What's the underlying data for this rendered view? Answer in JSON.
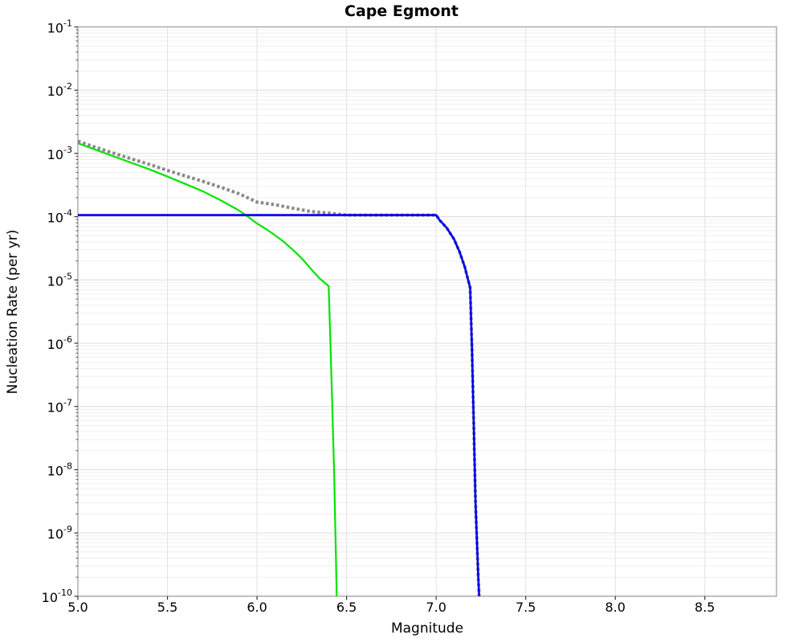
{
  "title": "Cape Egmont",
  "chart_data": {
    "type": "line",
    "title": "Cape Egmont",
    "xlabel": "Magnitude",
    "ylabel": "Nucleation Rate (per yr)",
    "xlim": [
      5.0,
      8.9
    ],
    "ylim": [
      1e-10,
      0.1
    ],
    "x_axis_scale": "linear",
    "y_axis_scale": "log",
    "x_ticks": [
      5.0,
      5.5,
      6.0,
      6.5,
      7.0,
      7.5,
      8.0,
      8.5
    ],
    "x_tick_labels": [
      "5.0",
      "5.5",
      "6.0",
      "6.5",
      "7.0",
      "7.5",
      "8.0",
      "8.5"
    ],
    "y_tick_exponents": [
      -1,
      -2,
      -3,
      -4,
      -5,
      -6,
      -7,
      -8,
      -9,
      -10
    ],
    "grid": "major and log-minor gridlines on",
    "legend": "none",
    "series": [
      {
        "name": "green-curve",
        "description": "tapered Gutenberg-Richter branch, max magnitude ~6.45",
        "color": "#00e400",
        "style": "solid",
        "width": 2.2,
        "points": [
          [
            5.0,
            0.00145
          ],
          [
            5.1,
            0.00114
          ],
          [
            5.2,
            0.0009
          ],
          [
            5.3,
            0.00071
          ],
          [
            5.4,
            0.00056
          ],
          [
            5.5,
            0.00043
          ],
          [
            5.6,
            0.00033
          ],
          [
            5.7,
            0.00025
          ],
          [
            5.8,
            0.00018
          ],
          [
            5.9,
            0.000125
          ],
          [
            5.95,
            0.0001
          ],
          [
            6.0,
            7.8e-05
          ],
          [
            6.05,
            6.4e-05
          ],
          [
            6.1,
            5.1e-05
          ],
          [
            6.15,
            4e-05
          ],
          [
            6.2,
            3e-05
          ],
          [
            6.25,
            2.2e-05
          ],
          [
            6.3,
            1.5e-05
          ],
          [
            6.35,
            1.05e-05
          ],
          [
            6.4,
            8e-06
          ],
          [
            6.41,
            1e-06
          ],
          [
            6.42,
            1e-07
          ],
          [
            6.43,
            1e-08
          ],
          [
            6.44,
            5e-10
          ],
          [
            6.445,
            1e-10
          ]
        ]
      },
      {
        "name": "gray-dotted-curve",
        "description": "total rate (sum of green and blue branches)",
        "color": "#8a8a8a",
        "style": "dotted",
        "width": 4,
        "points": [
          [
            5.0,
            0.00156
          ],
          [
            5.1,
            0.00125
          ],
          [
            5.2,
            0.00101
          ],
          [
            5.3,
            0.00082
          ],
          [
            5.4,
            0.00067
          ],
          [
            5.5,
            0.00054
          ],
          [
            5.6,
            0.00044
          ],
          [
            5.7,
            0.00036
          ],
          [
            5.8,
            0.00029
          ],
          [
            5.9,
            0.00023
          ],
          [
            6.0,
            0.00017
          ],
          [
            6.1,
            0.000155
          ],
          [
            6.2,
            0.000136
          ],
          [
            6.3,
            0.000121
          ],
          [
            6.4,
            0.000114
          ],
          [
            6.5,
            0.000106
          ],
          [
            6.75,
            0.000106
          ],
          [
            7.0,
            0.000106
          ],
          [
            7.02,
            8.8e-05
          ],
          [
            7.06,
            6.6e-05
          ],
          [
            7.1,
            4.4e-05
          ],
          [
            7.13,
            2.8e-05
          ],
          [
            7.16,
            1.6e-05
          ],
          [
            7.19,
            7.5e-06
          ],
          [
            7.2,
            8e-07
          ],
          [
            7.21,
            5e-08
          ],
          [
            7.22,
            3e-09
          ],
          [
            7.235,
            2e-10
          ],
          [
            7.24,
            1e-10
          ]
        ]
      },
      {
        "name": "blue-curve",
        "description": "characteristic branch, flat rate with max magnitude ~7.24",
        "color": "#0000ee",
        "style": "solid",
        "width": 2.6,
        "points": [
          [
            5.0,
            0.000106
          ],
          [
            6.0,
            0.000106
          ],
          [
            7.0,
            0.000106
          ],
          [
            7.02,
            8.8e-05
          ],
          [
            7.06,
            6.6e-05
          ],
          [
            7.1,
            4.4e-05
          ],
          [
            7.13,
            2.8e-05
          ],
          [
            7.16,
            1.6e-05
          ],
          [
            7.19,
            7.5e-06
          ],
          [
            7.2,
            8e-07
          ],
          [
            7.21,
            5e-08
          ],
          [
            7.22,
            3e-09
          ],
          [
            7.235,
            2e-10
          ],
          [
            7.24,
            1e-10
          ]
        ]
      }
    ]
  }
}
